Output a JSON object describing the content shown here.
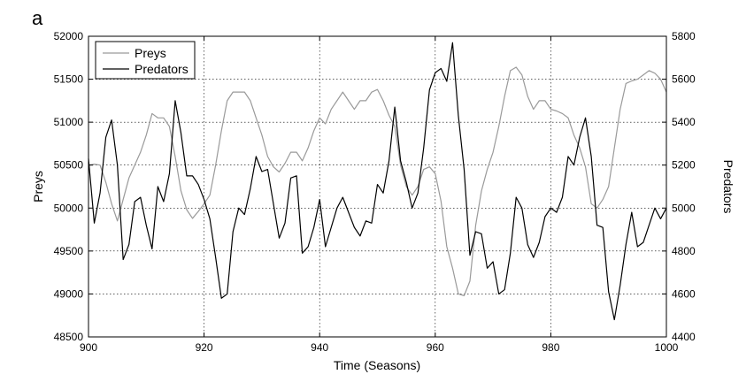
{
  "panel_label": "a",
  "chart_data": {
    "type": "line",
    "xlabel": "Time (Seasons)",
    "ylabel_left": "Preys",
    "ylabel_right": "Predators",
    "xlim": [
      900,
      1000
    ],
    "ylim_left": [
      48500,
      52000
    ],
    "ylim_right": [
      4400,
      5800
    ],
    "x_ticks": [
      900,
      920,
      940,
      960,
      980,
      1000
    ],
    "y_ticks_left": [
      48500,
      49000,
      49500,
      50000,
      50500,
      51000,
      51500,
      52000
    ],
    "y_ticks_right": [
      4400,
      4600,
      4800,
      5000,
      5200,
      5400,
      5600,
      5800
    ],
    "grid": true,
    "legend_position": "top-left",
    "x": [
      900,
      901,
      902,
      903,
      904,
      905,
      906,
      907,
      908,
      909,
      910,
      911,
      912,
      913,
      914,
      915,
      916,
      917,
      918,
      919,
      920,
      921,
      922,
      923,
      924,
      925,
      926,
      927,
      928,
      929,
      930,
      931,
      932,
      933,
      934,
      935,
      936,
      937,
      938,
      939,
      940,
      941,
      942,
      943,
      944,
      945,
      946,
      947,
      948,
      949,
      950,
      951,
      952,
      953,
      954,
      955,
      956,
      957,
      958,
      959,
      960,
      961,
      962,
      963,
      964,
      965,
      966,
      967,
      968,
      969,
      970,
      971,
      972,
      973,
      974,
      975,
      976,
      977,
      978,
      979,
      980,
      981,
      982,
      983,
      984,
      985,
      986,
      987,
      988,
      989,
      990,
      991,
      992,
      993,
      994,
      995,
      996,
      997,
      998,
      999,
      1000
    ],
    "series": [
      {
        "name": "Preys",
        "axis": "left",
        "color": "#9a9a9a",
        "values": [
          50500,
          50510,
          50500,
          50300,
          50050,
          49850,
          50100,
          50350,
          50500,
          50650,
          50850,
          51100,
          51050,
          51050,
          50950,
          50600,
          50200,
          49980,
          49880,
          49960,
          50050,
          50150,
          50500,
          50900,
          51250,
          51350,
          51350,
          51350,
          51250,
          51050,
          50850,
          50600,
          50480,
          50420,
          50520,
          50650,
          50650,
          50550,
          50700,
          50900,
          51050,
          50980,
          51150,
          51250,
          51350,
          51250,
          51150,
          51250,
          51250,
          51350,
          51380,
          51250,
          51080,
          50950,
          50500,
          50250,
          50150,
          50250,
          50450,
          50480,
          50400,
          50080,
          49550,
          49300,
          49000,
          48980,
          49150,
          49800,
          50200,
          50450,
          50650,
          50950,
          51300,
          51600,
          51640,
          51550,
          51300,
          51150,
          51250,
          51250,
          51150,
          51130,
          51100,
          51050,
          50850,
          50700,
          50480,
          50050,
          50000,
          50100,
          50250,
          50700,
          51150,
          51450,
          51480,
          51500,
          51550,
          51600,
          51570,
          51500,
          51350
        ],
        "values_start_index": 0
      },
      {
        "name": "Predators",
        "axis": "right",
        "color": "#000000",
        "values": [
          5230,
          4930,
          5070,
          5330,
          5410,
          5200,
          4760,
          4830,
          5030,
          5050,
          4920,
          4810,
          5100,
          5030,
          5160,
          5500,
          5350,
          5150,
          5150,
          5110,
          5040,
          4950,
          4770,
          4580,
          4600,
          4890,
          5000,
          4970,
          5090,
          5240,
          5170,
          5180,
          5020,
          4860,
          4930,
          5140,
          5150,
          4790,
          4820,
          4910,
          5040,
          4820,
          4910,
          5000,
          5050,
          4980,
          4910,
          4870,
          4940,
          4930,
          5110,
          5070,
          5220,
          5470,
          5220,
          5120,
          5000,
          5070,
          5280,
          5550,
          5630,
          5650,
          5590,
          5770,
          5430,
          5180,
          4780,
          4890,
          4880,
          4720,
          4750,
          4600,
          4620,
          4790,
          5050,
          5000,
          4830,
          4770,
          4840,
          4960,
          5000,
          4980,
          5050,
          5240,
          5200,
          5330,
          5420,
          5240,
          4920,
          4910,
          4610,
          4480,
          4640,
          4830,
          4980,
          4820,
          4840,
          4920,
          5000,
          4950,
          5000
        ],
        "values_start_index": 0
      }
    ]
  }
}
